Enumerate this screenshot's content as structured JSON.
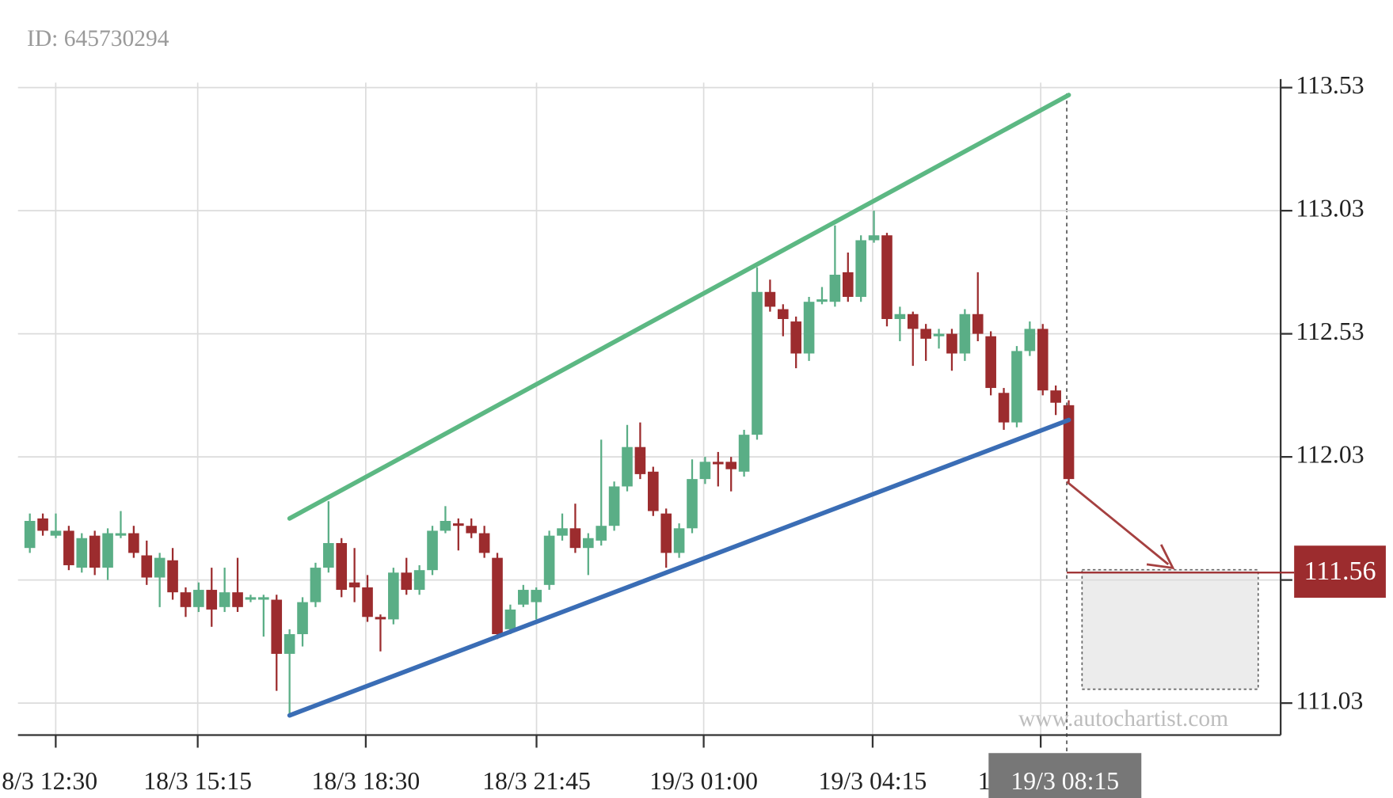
{
  "chart_data": {
    "type": "candlestick",
    "id_label": "ID: 645730294",
    "watermark": "www.autochartist.com",
    "xticks": [
      "8/3 12:30",
      "18/3 15:15",
      "18/3 18:30",
      "18/3 21:45",
      "19/3 01:00",
      "19/3 04:15",
      "1"
    ],
    "current_time": "19/3 08:15",
    "ylim": [
      110.9,
      113.55
    ],
    "yticks": [
      111.03,
      111.53,
      112.03,
      112.53,
      113.03,
      113.53
    ],
    "grid": true,
    "up_color": "#5aae86",
    "down_color": "#9c2c2e",
    "candles": [
      [
        111.66,
        111.8,
        111.64,
        111.77
      ],
      [
        111.78,
        111.8,
        111.71,
        111.73
      ],
      [
        111.71,
        111.8,
        111.7,
        111.73
      ],
      [
        111.73,
        111.75,
        111.57,
        111.59
      ],
      [
        111.58,
        111.72,
        111.56,
        111.7
      ],
      [
        111.71,
        111.73,
        111.55,
        111.58
      ],
      [
        111.58,
        111.74,
        111.53,
        111.72
      ],
      [
        111.71,
        111.81,
        111.7,
        111.72
      ],
      [
        111.72,
        111.75,
        111.62,
        111.64
      ],
      [
        111.63,
        111.69,
        111.51,
        111.54
      ],
      [
        111.54,
        111.64,
        111.42,
        111.62
      ],
      [
        111.61,
        111.66,
        111.45,
        111.48
      ],
      [
        111.48,
        111.5,
        111.38,
        111.42
      ],
      [
        111.42,
        111.52,
        111.4,
        111.49
      ],
      [
        111.49,
        111.58,
        111.34,
        111.41
      ],
      [
        111.42,
        111.58,
        111.4,
        111.48
      ],
      [
        111.48,
        111.62,
        111.4,
        111.42
      ],
      [
        111.45,
        111.47,
        111.44,
        111.46
      ],
      [
        111.45,
        111.47,
        111.3,
        111.46
      ],
      [
        111.45,
        111.47,
        111.08,
        111.23
      ],
      [
        111.23,
        111.33,
        110.98,
        111.31
      ],
      [
        111.31,
        111.46,
        111.26,
        111.44
      ],
      [
        111.44,
        111.6,
        111.42,
        111.58
      ],
      [
        111.58,
        111.85,
        111.56,
        111.68
      ],
      [
        111.68,
        111.7,
        111.46,
        111.49
      ],
      [
        111.52,
        111.66,
        111.44,
        111.5
      ],
      [
        111.5,
        111.55,
        111.36,
        111.38
      ],
      [
        111.38,
        111.39,
        111.24,
        111.37
      ],
      [
        111.37,
        111.58,
        111.35,
        111.56
      ],
      [
        111.56,
        111.62,
        111.47,
        111.49
      ],
      [
        111.49,
        111.59,
        111.47,
        111.57
      ],
      [
        111.57,
        111.75,
        111.55,
        111.73
      ],
      [
        111.73,
        111.83,
        111.72,
        111.77
      ],
      [
        111.76,
        111.78,
        111.65,
        111.75
      ],
      [
        111.75,
        111.78,
        111.7,
        111.72
      ],
      [
        111.72,
        111.75,
        111.62,
        111.64
      ],
      [
        111.62,
        111.64,
        111.29,
        111.31
      ],
      [
        111.33,
        111.43,
        111.31,
        111.41
      ],
      [
        111.43,
        111.51,
        111.42,
        111.49
      ],
      [
        111.44,
        111.5,
        111.37,
        111.49
      ],
      [
        111.51,
        111.73,
        111.49,
        111.71
      ],
      [
        111.71,
        111.8,
        111.69,
        111.74
      ],
      [
        111.74,
        111.84,
        111.64,
        111.66
      ],
      [
        111.66,
        111.72,
        111.55,
        111.7
      ],
      [
        111.69,
        112.1,
        111.67,
        111.75
      ],
      [
        111.75,
        111.93,
        111.73,
        111.91
      ],
      [
        111.91,
        112.16,
        111.89,
        112.07
      ],
      [
        112.07,
        112.17,
        111.94,
        111.96
      ],
      [
        111.97,
        111.99,
        111.79,
        111.81
      ],
      [
        111.8,
        111.82,
        111.58,
        111.64
      ],
      [
        111.64,
        111.76,
        111.62,
        111.74
      ],
      [
        111.74,
        112.02,
        111.72,
        111.94
      ],
      [
        111.94,
        112.03,
        111.92,
        112.01
      ],
      [
        112.01,
        112.05,
        111.91,
        112.0
      ],
      [
        112.01,
        112.03,
        111.89,
        111.98
      ],
      [
        111.97,
        112.14,
        111.95,
        112.12
      ],
      [
        112.12,
        112.8,
        112.1,
        112.7
      ],
      [
        112.7,
        112.75,
        112.62,
        112.64
      ],
      [
        112.63,
        112.65,
        112.52,
        112.59
      ],
      [
        112.58,
        112.6,
        112.39,
        112.45
      ],
      [
        112.45,
        112.68,
        112.42,
        112.66
      ],
      [
        112.66,
        112.72,
        112.65,
        112.67
      ],
      [
        112.66,
        112.97,
        112.64,
        112.77
      ],
      [
        112.78,
        112.86,
        112.66,
        112.68
      ],
      [
        112.68,
        112.93,
        112.66,
        112.91
      ],
      [
        112.91,
        113.03,
        112.9,
        112.93
      ],
      [
        112.93,
        112.94,
        112.56,
        112.59
      ],
      [
        112.59,
        112.64,
        112.5,
        112.61
      ],
      [
        112.61,
        112.62,
        112.4,
        112.55
      ],
      [
        112.55,
        112.57,
        112.42,
        112.51
      ],
      [
        112.52,
        112.55,
        112.47,
        112.53
      ],
      [
        112.53,
        112.55,
        112.38,
        112.45
      ],
      [
        112.45,
        112.63,
        112.42,
        112.61
      ],
      [
        112.61,
        112.78,
        112.5,
        112.53
      ],
      [
        112.52,
        112.54,
        112.28,
        112.31
      ],
      [
        112.29,
        112.31,
        112.14,
        112.17
      ],
      [
        112.17,
        112.48,
        112.15,
        112.46
      ],
      [
        112.46,
        112.58,
        112.44,
        112.55
      ],
      [
        112.55,
        112.57,
        112.28,
        112.3
      ],
      [
        112.3,
        112.32,
        112.2,
        112.25
      ],
      [
        112.24,
        112.26,
        111.92,
        111.94
      ]
    ],
    "trendlines": [
      {
        "color": "#5cb883",
        "start": [
          20,
          111.78
        ],
        "end": [
          80,
          113.5
        ]
      },
      {
        "color": "#3a6db5",
        "start": [
          20,
          110.98
        ],
        "end": [
          80,
          112.18
        ]
      }
    ],
    "target": 111.56,
    "target_color": "#9c2c2e"
  }
}
